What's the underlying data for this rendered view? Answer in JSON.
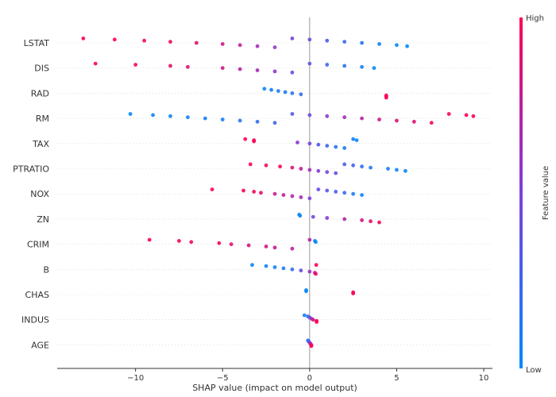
{
  "chart_data": {
    "type": "scatter",
    "subtype": "beeswarm",
    "title": "",
    "xlabel": "SHAP value (impact on model output)",
    "ylabel": "",
    "xlim": [
      -14.5,
      10.5
    ],
    "x_ticks": [
      -10,
      -5,
      0,
      5,
      10
    ],
    "x_tick_labels": [
      "−10",
      "−5",
      "0",
      "5",
      "10"
    ],
    "grid": "horizontal dotted row lines",
    "zero_line": true,
    "features": [
      {
        "name": "LSTAT",
        "points": [
          [
            -13,
            1
          ],
          [
            -11.2,
            1
          ],
          [
            -9.5,
            0.98
          ],
          [
            -8,
            0.95
          ],
          [
            -6.5,
            0.9
          ],
          [
            -5,
            0.8
          ],
          [
            -4,
            0.75
          ],
          [
            -3,
            0.65
          ],
          [
            -2,
            0.58
          ],
          [
            -1,
            0.48
          ],
          [
            0,
            0.4
          ],
          [
            1,
            0.3
          ],
          [
            2,
            0.22
          ],
          [
            3,
            0.15
          ],
          [
            4,
            0.08
          ],
          [
            5,
            0.03
          ],
          [
            5.6,
            0.02
          ]
        ]
      },
      {
        "name": "DIS",
        "points": [
          [
            -12.3,
            1
          ],
          [
            -10,
            0.95
          ],
          [
            -8,
            0.92
          ],
          [
            -7,
            0.88
          ],
          [
            -5,
            0.8
          ],
          [
            -4,
            0.72
          ],
          [
            -3,
            0.65
          ],
          [
            -2,
            0.55
          ],
          [
            -1,
            0.45
          ],
          [
            0,
            0.35
          ],
          [
            1,
            0.25
          ],
          [
            2,
            0.15
          ],
          [
            3,
            0.08
          ],
          [
            3.7,
            0.02
          ]
        ]
      },
      {
        "name": "RAD",
        "points": [
          [
            -2.6,
            0.05
          ],
          [
            -2.2,
            0.08
          ],
          [
            -1.8,
            0.1
          ],
          [
            -1.4,
            0.12
          ],
          [
            -1,
            0.15
          ],
          [
            -0.5,
            0.18
          ],
          [
            4.4,
            1
          ],
          [
            4.4,
            0.95
          ],
          [
            4.4,
            0.97
          ]
        ]
      },
      {
        "name": "RM",
        "points": [
          [
            -10.3,
            0.02
          ],
          [
            -9,
            0.05
          ],
          [
            -8,
            0.05
          ],
          [
            -7,
            0.08
          ],
          [
            -6,
            0.08
          ],
          [
            -5,
            0.1
          ],
          [
            -4,
            0.15
          ],
          [
            -3,
            0.2
          ],
          [
            -2,
            0.25
          ],
          [
            -1,
            0.35
          ],
          [
            0,
            0.45
          ],
          [
            1,
            0.55
          ],
          [
            2,
            0.65
          ],
          [
            3,
            0.72
          ],
          [
            4,
            0.8
          ],
          [
            5,
            0.88
          ],
          [
            6,
            0.92
          ],
          [
            7,
            0.95
          ],
          [
            8,
            0.97
          ],
          [
            9,
            0.99
          ],
          [
            9.4,
            1
          ]
        ]
      },
      {
        "name": "TAX",
        "points": [
          [
            -3.7,
            1
          ],
          [
            -3.2,
            0.98
          ],
          [
            -3.2,
            0.97
          ],
          [
            -0.7,
            0.55
          ],
          [
            0,
            0.45
          ],
          [
            0.5,
            0.35
          ],
          [
            1,
            0.25
          ],
          [
            1.5,
            0.15
          ],
          [
            2,
            0.1
          ],
          [
            2.5,
            0.05
          ],
          [
            2.7,
            0.03
          ]
        ]
      },
      {
        "name": "PTRATIO",
        "points": [
          [
            -3.4,
            1
          ],
          [
            -2.5,
            0.95
          ],
          [
            -1.7,
            0.98
          ],
          [
            -1,
            0.85
          ],
          [
            -0.5,
            0.75
          ],
          [
            0,
            0.65
          ],
          [
            0.5,
            0.55
          ],
          [
            1,
            0.45
          ],
          [
            1.5,
            0.4
          ],
          [
            2,
            0.3
          ],
          [
            2.5,
            0.25
          ],
          [
            3,
            0.18
          ],
          [
            3.5,
            0.12
          ],
          [
            4.5,
            0.08
          ],
          [
            5,
            0.05
          ],
          [
            5.5,
            0.03
          ]
        ]
      },
      {
        "name": "NOX",
        "points": [
          [
            -5.6,
            1
          ],
          [
            -3.8,
            0.98
          ],
          [
            -3.2,
            0.95
          ],
          [
            -2.8,
            0.9
          ],
          [
            -2,
            0.8
          ],
          [
            -1.5,
            0.75
          ],
          [
            -1,
            0.7
          ],
          [
            -0.5,
            0.65
          ],
          [
            0,
            0.5
          ],
          [
            0.5,
            0.4
          ],
          [
            1,
            0.35
          ],
          [
            1.5,
            0.3
          ],
          [
            2,
            0.2
          ],
          [
            2.5,
            0.12
          ],
          [
            3,
            0.05
          ]
        ]
      },
      {
        "name": "ZN",
        "points": [
          [
            -0.6,
            0.02
          ],
          [
            -0.55,
            0.05
          ],
          [
            0.2,
            0.45
          ],
          [
            1,
            0.55
          ],
          [
            2,
            0.7
          ],
          [
            3,
            0.85
          ],
          [
            3.5,
            0.92
          ],
          [
            4,
            0.98
          ]
        ]
      },
      {
        "name": "CRIM",
        "points": [
          [
            -9.2,
            1
          ],
          [
            -7.5,
            1
          ],
          [
            -6.8,
            0.95
          ],
          [
            -5.2,
            0.95
          ],
          [
            -4.5,
            0.9
          ],
          [
            -3.5,
            0.85
          ],
          [
            -2.5,
            0.85
          ],
          [
            -2,
            0.8
          ],
          [
            -1,
            0.75
          ],
          [
            0,
            0.7
          ],
          [
            0.3,
            0.05
          ],
          [
            0.35,
            0.02
          ]
        ]
      },
      {
        "name": "B",
        "points": [
          [
            -3.3,
            0.02
          ],
          [
            -2.5,
            0.05
          ],
          [
            -2,
            0.05
          ],
          [
            -1.5,
            0.1
          ],
          [
            -1,
            0.2
          ],
          [
            -0.5,
            0.4
          ],
          [
            0,
            0.6
          ],
          [
            0.3,
            0.8
          ],
          [
            0.35,
            0.95
          ],
          [
            0.38,
            1
          ]
        ]
      },
      {
        "name": "CHAS",
        "points": [
          [
            -0.2,
            0.02
          ],
          [
            -0.2,
            0.03
          ],
          [
            2.5,
            1
          ],
          [
            2.5,
            0.97
          ]
        ]
      },
      {
        "name": "INDUS",
        "points": [
          [
            -0.3,
            0.1
          ],
          [
            -0.1,
            0.2
          ],
          [
            0,
            0.35
          ],
          [
            0.1,
            0.6
          ],
          [
            0.2,
            0.8
          ],
          [
            0.4,
            0.95
          ],
          [
            0.4,
            1
          ]
        ]
      },
      {
        "name": "AGE",
        "points": [
          [
            -0.1,
            0.1
          ],
          [
            -0.05,
            0.3
          ],
          [
            0,
            0.5
          ],
          [
            0.05,
            0.7
          ],
          [
            0.1,
            0.9
          ],
          [
            0.1,
            1
          ]
        ]
      }
    ],
    "colorbar": {
      "label": "Feature value",
      "high_label": "High",
      "low_label": "Low",
      "low_color": "#008bfb",
      "high_color": "#ff0052"
    }
  }
}
